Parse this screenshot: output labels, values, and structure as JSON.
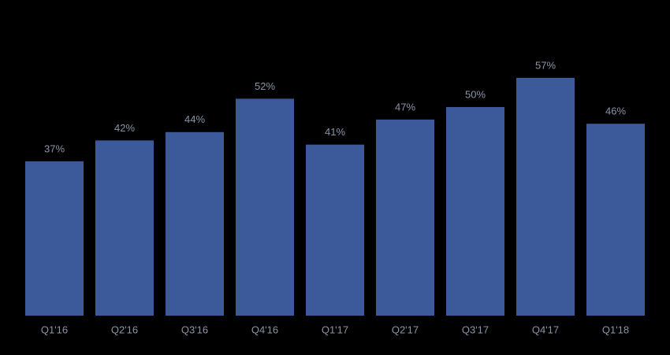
{
  "chart_data": {
    "type": "bar",
    "categories": [
      "Q1'16",
      "Q2'16",
      "Q3'16",
      "Q4'16",
      "Q1'17",
      "Q2'17",
      "Q3'17",
      "Q4'17",
      "Q1'18"
    ],
    "values": [
      37,
      42,
      44,
      52,
      41,
      47,
      50,
      57,
      46
    ],
    "value_labels": [
      "37%",
      "42%",
      "44%",
      "52%",
      "41%",
      "47%",
      "50%",
      "57%",
      "46%"
    ],
    "color": "#3c5a99"
  }
}
